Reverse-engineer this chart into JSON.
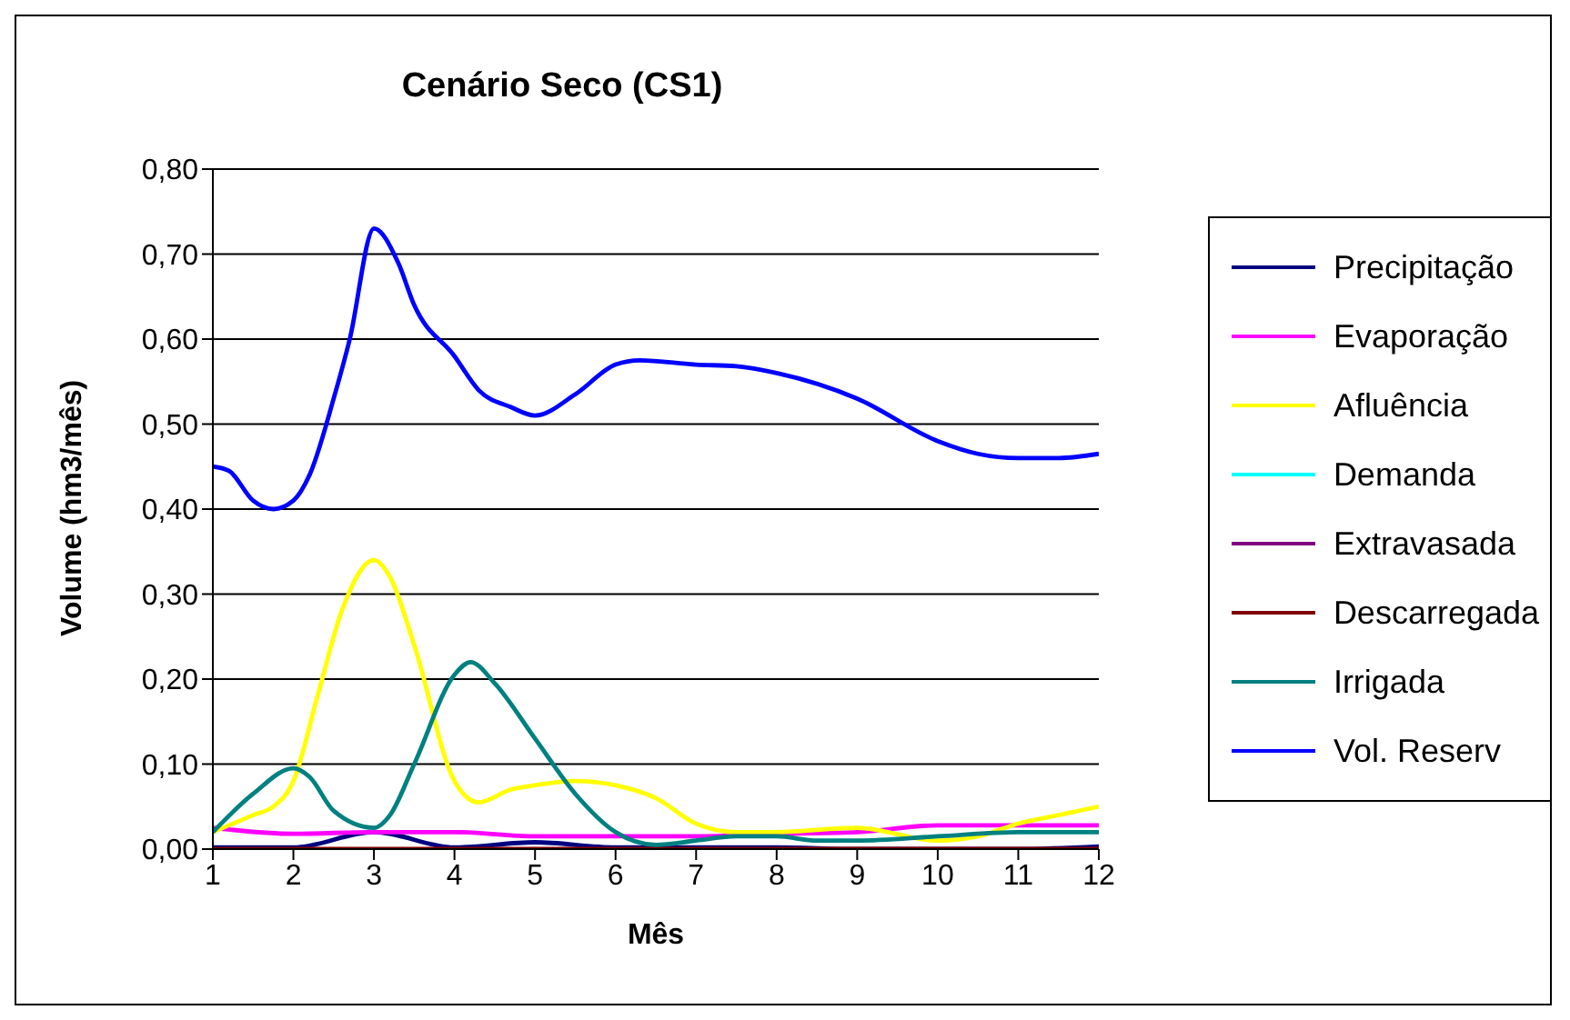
{
  "chart_data": {
    "type": "line",
    "title": "Cenário Seco (CS1)",
    "xlabel": "Mês",
    "ylabel": "Volume (hm3/mês)",
    "xlim": [
      1,
      12
    ],
    "xticks": [
      1,
      2,
      3,
      4,
      5,
      6,
      7,
      8,
      9,
      10,
      11,
      12
    ],
    "ylim": [
      0,
      0.8
    ],
    "yticks": [
      {
        "value": 0,
        "label": "0,00"
      },
      {
        "value": 0.1,
        "label": "0,10"
      },
      {
        "value": 0.2,
        "label": "0,20"
      },
      {
        "value": 0.3,
        "label": "0,30"
      },
      {
        "value": 0.4,
        "label": "0,40"
      },
      {
        "value": 0.5,
        "label": "0,50"
      },
      {
        "value": 0.6,
        "label": "0,60"
      },
      {
        "value": 0.7,
        "label": "0,70"
      },
      {
        "value": 0.8,
        "label": "0,80"
      }
    ],
    "grid": "y",
    "legend": "right",
    "marker": "none",
    "line_style": "solid",
    "series": [
      {
        "name": "Precipitação",
        "color": "#000080",
        "x": [
          1,
          2,
          3,
          4,
          5,
          6,
          7,
          8,
          9,
          10,
          11,
          12
        ],
        "values": [
          0.002,
          0.002,
          0.02,
          0.002,
          0.008,
          0.002,
          0.002,
          0.002,
          0,
          0,
          0,
          0.003
        ]
      },
      {
        "name": "Evaporação",
        "color": "#ff00ff",
        "x": [
          1,
          2,
          3,
          4,
          5,
          6,
          7,
          8,
          9,
          10,
          11,
          12
        ],
        "values": [
          0.025,
          0.018,
          0.02,
          0.02,
          0.015,
          0.015,
          0.015,
          0.018,
          0.02,
          0.028,
          0.028,
          0.028
        ]
      },
      {
        "name": "Afluência",
        "color": "#ffff00",
        "x": [
          1,
          1.5,
          1.75,
          2,
          2.3,
          2.6,
          3,
          3.2,
          3.5,
          4,
          4.3,
          4.7,
          5,
          5.5,
          6,
          6.5,
          7,
          7.5,
          8,
          9,
          10,
          10.5,
          11,
          11.5,
          12
        ],
        "values": [
          0.02,
          0.04,
          0.05,
          0.08,
          0.18,
          0.28,
          0.34,
          0.32,
          0.24,
          0.08,
          0.055,
          0.07,
          0.075,
          0.08,
          0.075,
          0.06,
          0.03,
          0.02,
          0.02,
          0.025,
          0.01,
          0.015,
          0.03,
          0.04,
          0.05
        ]
      },
      {
        "name": "Demanda",
        "color": "#00ffff",
        "values": [
          null,
          null,
          null,
          null,
          null,
          null,
          null,
          null,
          null,
          null,
          null,
          null
        ]
      },
      {
        "name": "Extravasada",
        "color": "#800080",
        "values": [
          null,
          null,
          null,
          null,
          null,
          null,
          null,
          null,
          null,
          null,
          null,
          null
        ]
      },
      {
        "name": "Descarregada",
        "color": "#800000",
        "x": [
          1,
          2,
          3,
          4,
          5,
          6,
          7,
          8,
          9,
          10,
          11,
          12
        ],
        "values": [
          0,
          0,
          0,
          0,
          0,
          0,
          0,
          0,
          0,
          0,
          0,
          0
        ]
      },
      {
        "name": "Irrigada",
        "color": "#008080",
        "x": [
          1,
          1.5,
          2,
          2.2,
          2.5,
          3,
          3.2,
          3.5,
          4,
          4.2,
          4.5,
          5,
          5.5,
          6,
          6.5,
          7,
          7.5,
          8,
          8.5,
          9,
          10,
          11,
          12
        ],
        "values": [
          0.02,
          0.065,
          0.095,
          0.085,
          0.045,
          0.025,
          0.04,
          0.1,
          0.205,
          0.22,
          0.195,
          0.13,
          0.065,
          0.02,
          0.005,
          0.01,
          0.015,
          0.015,
          0.01,
          0.01,
          0.015,
          0.02,
          0.02
        ]
      },
      {
        "name": "Vol. Reserv",
        "color": "#0000ff",
        "x": [
          1,
          1.2,
          1.5,
          1.75,
          2,
          2.2,
          2.5,
          2.7,
          3,
          3.3,
          3.5,
          4,
          4.3,
          4.7,
          5,
          5.5,
          6,
          6.3,
          7,
          7.5,
          8,
          9,
          10,
          10.5,
          11,
          11.5,
          12
        ],
        "values": [
          0.45,
          0.445,
          0.41,
          0.4,
          0.41,
          0.44,
          0.53,
          0.6,
          0.73,
          0.69,
          0.64,
          0.58,
          0.54,
          0.52,
          0.51,
          0.535,
          0.57,
          0.575,
          0.57,
          0.568,
          0.56,
          0.53,
          0.48,
          0.465,
          0.46,
          0.46,
          0.465
        ]
      }
    ]
  }
}
